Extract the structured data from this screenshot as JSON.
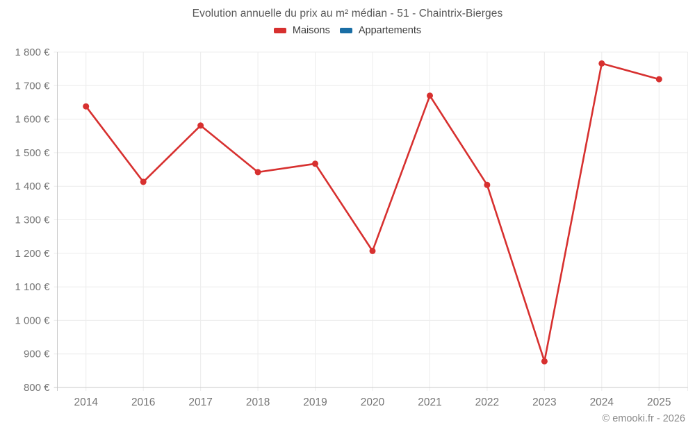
{
  "title": "Evolution annuelle du prix au m² médian - 51 - Chaintrix-Bierges",
  "legend": [
    {
      "label": "Maisons",
      "color": "#d7302f"
    },
    {
      "label": "Appartements",
      "color": "#1a6ea5"
    }
  ],
  "copyright": "© emooki.fr - 2026",
  "colors": {
    "line_red": "#d7302f",
    "line_blue": "#1a6ea5",
    "gridline": "#ececec",
    "axis_line": "#c9c9c9",
    "tick_label": "#757575",
    "title_text": "#575757",
    "legend_text": "#3c3c3c",
    "copyright_text": "#8a8a8a"
  },
  "chart_data": {
    "type": "line",
    "title": "Evolution annuelle du prix au m² médian - 51 - Chaintrix-Bierges",
    "categories": [
      "2014",
      "2016",
      "2017",
      "2018",
      "2019",
      "2020",
      "2021",
      "2022",
      "2023",
      "2024",
      "2025"
    ],
    "series": [
      {
        "name": "Maisons",
        "color": "#d7302f",
        "values": [
          1638,
          1413,
          1581,
          1442,
          1467,
          1207,
          1670,
          1404,
          878,
          1766,
          1719
        ]
      },
      {
        "name": "Appartements",
        "color": "#1a6ea5",
        "values": []
      }
    ],
    "xlabel": "",
    "ylabel": "",
    "ylim": [
      800,
      1800
    ],
    "ytick_step": 100,
    "ytick_labels": [
      "800 €",
      "900 €",
      "1 000 €",
      "1 100 €",
      "1 200 €",
      "1 300 €",
      "1 400 €",
      "1 500 €",
      "1 600 €",
      "1 700 €",
      "1 800 €"
    ],
    "grid": true,
    "legend_position": "top"
  }
}
